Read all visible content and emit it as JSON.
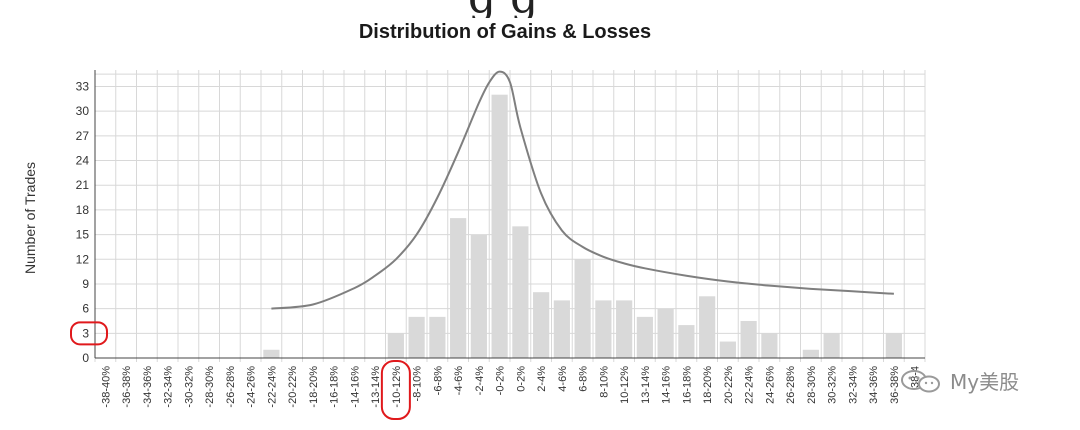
{
  "header_fragment": "g  g",
  "chart_data": {
    "type": "bar",
    "title": "Distribution of Gains & Losses",
    "xlabel": "",
    "ylabel": "Number of Trades",
    "ylim": [
      0,
      35
    ],
    "yticks": [
      0,
      3,
      6,
      9,
      12,
      15,
      18,
      21,
      24,
      27,
      30,
      33
    ],
    "grid": true,
    "categories": [
      "-38-40%",
      "-36-38%",
      "-34-36%",
      "-32-34%",
      "-30-32%",
      "-28-30%",
      "-26-28%",
      "-24-26%",
      "-22-24%",
      "-20-22%",
      "-18-20%",
      "-16-18%",
      "-14-16%",
      "-13-14%",
      "-10-12%",
      "-8-10%",
      "-6-8%",
      "-4-6%",
      "-2-4%",
      "-0-2%",
      "0-2%",
      "2-4%",
      "4-6%",
      "6-8%",
      "8-10%",
      "10-12%",
      "13-14%",
      "14-16%",
      "16-18%",
      "18-20%",
      "20-22%",
      "22-24%",
      "24-26%",
      "26-28%",
      "28-30%",
      "30-32%",
      "32-34%",
      "34-36%",
      "36-38%",
      "38-4"
    ],
    "values": [
      0,
      0,
      0,
      0,
      0,
      0,
      0,
      0,
      1,
      0,
      0,
      0,
      0,
      0,
      3,
      5,
      5,
      17,
      15,
      32,
      16,
      8,
      7,
      12,
      7,
      7,
      5,
      6,
      4,
      7.5,
      2,
      4.5,
      3,
      0,
      1,
      3,
      0,
      0,
      3,
      0
    ],
    "curve": {
      "x_index": [
        8,
        10,
        12,
        13,
        14,
        15,
        16,
        17,
        18,
        18.5,
        19,
        19.5,
        20,
        21,
        22,
        23,
        24,
        25,
        26,
        28,
        30,
        32,
        34,
        36,
        38
      ],
      "y": [
        6,
        6.5,
        8.5,
        10,
        12,
        15,
        19.5,
        25,
        31,
        33.5,
        34.8,
        33.5,
        28,
        20,
        15.5,
        13.5,
        12.3,
        11.5,
        10.9,
        10,
        9.3,
        8.8,
        8.4,
        8.1,
        7.8
      ]
    },
    "colors": {
      "bar": "#d9d9d9",
      "curve": "#7f7f7f",
      "grid": "#d8d8d8",
      "highlight": "#e0191c"
    },
    "highlighted": [
      "3",
      "-10-12%"
    ]
  },
  "watermark": {
    "text": "My美股",
    "icon": "wechat-icon"
  }
}
